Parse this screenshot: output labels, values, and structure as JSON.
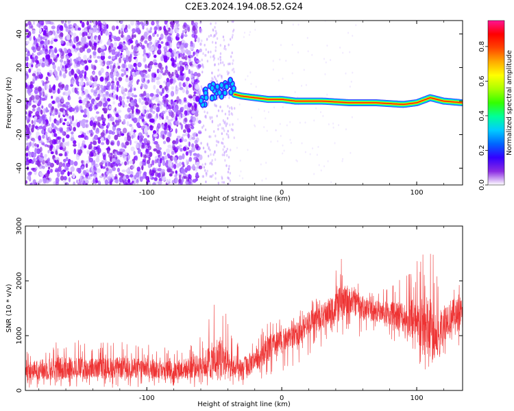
{
  "title": "C2E3.2024.194.08.52.G24",
  "colors": {
    "snr_line": "#ee3333",
    "axis": "#000000",
    "background": "#ffffff",
    "colormap": [
      "#ffffff",
      "#8a2be2",
      "#0000ff",
      "#00ccff",
      "#00ff66",
      "#66ff00",
      "#ffff00",
      "#ff8800",
      "#ff0000",
      "#ff1493"
    ]
  },
  "chart_data": [
    {
      "type": "heatmap",
      "title": "",
      "xlabel": "Height of straight line (km)",
      "ylabel": "Frequency (Hz)",
      "xlim": [
        -190,
        134
      ],
      "ylim": [
        -50,
        48
      ],
      "xticks": [
        -100,
        0,
        100
      ],
      "yticks": [
        -40,
        -20,
        0,
        20,
        40
      ],
      "grid": false,
      "colorbar": {
        "label": "Normalized spectral amplitude",
        "range": [
          0.0,
          0.95
        ],
        "ticks": [
          "0.0",
          "0.2",
          "0.4",
          "0.6",
          "0.8"
        ]
      },
      "features": {
        "noise_region_x": [
          -190,
          -60
        ],
        "scattered_region_x": [
          -60,
          -35
        ],
        "tone_track": {
          "x": [
            -60,
            -55,
            -50,
            -45,
            -40,
            -35,
            -30,
            -20,
            -10,
            0,
            10,
            30,
            50,
            70,
            90,
            100,
            110,
            120,
            134
          ],
          "y": [
            -2,
            4,
            6,
            6,
            10,
            4,
            3,
            2,
            1,
            1,
            0,
            0,
            -1,
            -1,
            -2,
            -1,
            2,
            0,
            -1
          ],
          "peak_amplitude": 0.9
        }
      }
    },
    {
      "type": "line",
      "title": "",
      "xlabel": "Height of straight line (km)",
      "ylabel": "SNR (10 * v/v)",
      "xlim": [
        -190,
        134
      ],
      "ylim": [
        0,
        3000
      ],
      "xticks": [
        -100,
        0,
        100
      ],
      "yticks": [
        0,
        1000,
        2000,
        3000
      ],
      "grid": false,
      "series": [
        {
          "x": [
            -190,
            -175,
            -160,
            -140,
            -120,
            -100,
            -80,
            -60,
            -45,
            -40,
            -35,
            -30,
            -25,
            -20,
            -10,
            0,
            10,
            20,
            30,
            45,
            50,
            60,
            70,
            80,
            90,
            100,
            105,
            110,
            115,
            120,
            125,
            134
          ],
          "y": [
            350,
            380,
            420,
            400,
            420,
            400,
            360,
            450,
            600,
            450,
            400,
            350,
            450,
            550,
            750,
            900,
            1000,
            1250,
            1350,
            1600,
            1650,
            1500,
            1450,
            1400,
            1350,
            1200,
            1150,
            1100,
            900,
            1300,
            1350,
            1400
          ],
          "envelope_max": [
            800,
            950,
            1000,
            900,
            900,
            850,
            800,
            1000,
            2050,
            1250,
            900,
            1000,
            1050,
            1000,
            1300,
            1300,
            1400,
            1600,
            1800,
            2450,
            2000,
            2000,
            1800,
            1900,
            2150,
            2400,
            2700,
            2950,
            2100,
            2000,
            2100,
            2050
          ],
          "envelope_min": [
            40,
            60,
            30,
            40,
            50,
            40,
            40,
            50,
            80,
            60,
            50,
            30,
            80,
            150,
            250,
            350,
            450,
            650,
            800,
            1000,
            1000,
            950,
            950,
            900,
            800,
            600,
            200,
            50,
            300,
            650,
            700,
            750
          ]
        }
      ]
    }
  ]
}
